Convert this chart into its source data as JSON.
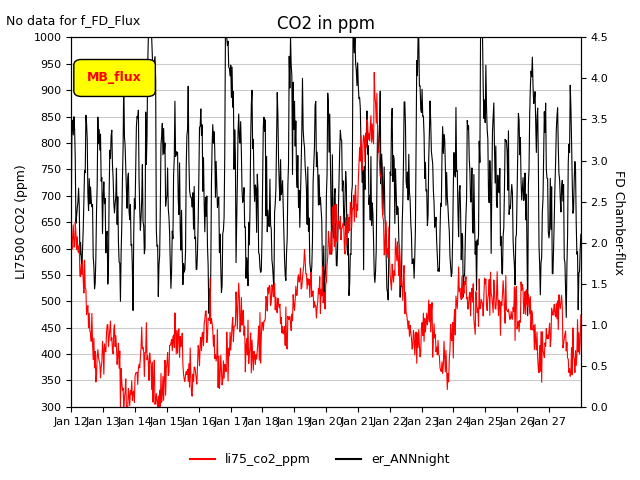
{
  "title": "CO2 in ppm",
  "no_data_text": "No data for f_FD_Flux",
  "ylabel_left": "LI7500 CO2 (ppm)",
  "ylabel_right": "FD Chamber-flux",
  "ylim_left": [
    300,
    1000
  ],
  "ylim_right": [
    0.0,
    4.5
  ],
  "yticks_left": [
    300,
    350,
    400,
    450,
    500,
    550,
    600,
    650,
    700,
    750,
    800,
    850,
    900,
    950,
    1000
  ],
  "yticks_right": [
    0.0,
    0.5,
    1.0,
    1.5,
    2.0,
    2.5,
    3.0,
    3.5,
    4.0,
    4.5
  ],
  "xtick_labels": [
    "Jan 12",
    "Jan 13",
    "Jan 14",
    "Jan 15",
    "Jan 16",
    "Jan 17",
    "Jan 18",
    "Jan 19",
    "Jan 20",
    "Jan 21",
    "Jan 22",
    "Jan 23",
    "Jan 24",
    "Jan 25",
    "Jan 26",
    "Jan 27"
  ],
  "legend_entries": [
    "li75_co2_ppm",
    "er_ANNnight"
  ],
  "legend_colors": [
    "#ff0000",
    "#000000"
  ],
  "mb_flux_box_color": "#ffff00",
  "mb_flux_text_color": "#ff0000",
  "line1_color": "#ff0000",
  "line2_color": "#000000",
  "bg_color": "#ffffff",
  "grid_color": "#cccccc"
}
